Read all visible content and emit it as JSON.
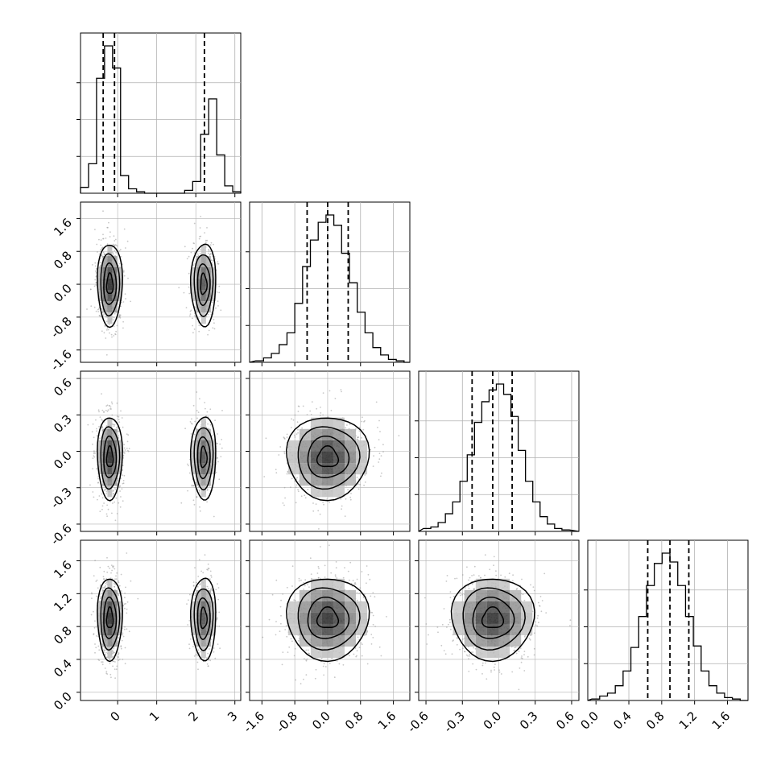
{
  "chart_data": {
    "type": "corner",
    "title": "",
    "n_params": 4,
    "params": [
      {
        "ticks": [
          0,
          1,
          2,
          3
        ],
        "tick_labels": [
          "0",
          "1",
          "2",
          "3"
        ],
        "xlim": [
          -0.95,
          3.15
        ],
        "hist": {
          "edges": [
            -0.95,
            -0.745,
            -0.54,
            -0.335,
            -0.13,
            0.075,
            0.28,
            0.485,
            0.69,
            0.895,
            1.1,
            1.305,
            1.51,
            1.715,
            1.92,
            2.125,
            2.33,
            2.535,
            2.74,
            2.945,
            3.15
          ],
          "counts": [
            0.04,
            0.2,
            0.78,
            1.0,
            0.85,
            0.12,
            0.03,
            0.01,
            0,
            0,
            0,
            0,
            0,
            0.02,
            0.08,
            0.4,
            0.64,
            0.26,
            0.05,
            0.01
          ]
        },
        "quantiles": [
          -0.37,
          -0.08,
          2.22
        ]
      },
      {
        "ticks": [
          -1.6,
          -0.8,
          0.0,
          0.8,
          1.6
        ],
        "tick_labels": [
          "-1.6",
          "-0.8",
          "0.0",
          "0.8",
          "1.6"
        ],
        "xlim": [
          -1.9,
          2.0
        ],
        "hist": {
          "edges": [
            -1.75,
            -1.56,
            -1.37,
            -1.18,
            -0.99,
            -0.8,
            -0.61,
            -0.42,
            -0.23,
            -0.04,
            0.15,
            0.34,
            0.53,
            0.72,
            0.91,
            1.1,
            1.29,
            1.48,
            1.67,
            1.86,
            2.0
          ],
          "counts": [
            0.01,
            0.03,
            0.06,
            0.12,
            0.2,
            0.4,
            0.65,
            0.83,
            0.95,
            1.0,
            0.93,
            0.74,
            0.54,
            0.34,
            0.2,
            0.1,
            0.05,
            0.02,
            0.01,
            0.0
          ]
        },
        "quantiles": [
          -0.5,
          0.0,
          0.5
        ]
      },
      {
        "ticks": [
          -0.6,
          -0.3,
          0.0,
          0.3,
          0.6
        ],
        "tick_labels": [
          "-0.6",
          "-0.3",
          "0.0",
          "0.3",
          "0.6"
        ],
        "xlim": [
          -0.66,
          0.66
        ],
        "hist": {
          "edges": [
            -0.62,
            -0.56,
            -0.5,
            -0.44,
            -0.38,
            -0.32,
            -0.26,
            -0.2,
            -0.14,
            -0.08,
            -0.02,
            0.04,
            0.1,
            0.16,
            0.22,
            0.28,
            0.34,
            0.4,
            0.46,
            0.52,
            0.58
          ],
          "counts": [
            0.02,
            0.03,
            0.06,
            0.12,
            0.2,
            0.34,
            0.52,
            0.74,
            0.88,
            0.96,
            1.0,
            0.93,
            0.78,
            0.55,
            0.34,
            0.2,
            0.1,
            0.05,
            0.02,
            0.01
          ]
        },
        "quantiles": [
          -0.22,
          -0.05,
          0.11
        ]
      },
      {
        "ticks": [
          0.0,
          0.4,
          0.8,
          1.2,
          1.6
        ],
        "tick_labels": [
          "0.0",
          "0.4",
          "0.8",
          "1.2",
          "1.6"
        ],
        "xlim": [
          -0.1,
          1.85
        ],
        "hist": {
          "edges": [
            -0.05,
            0.045,
            0.14,
            0.235,
            0.33,
            0.425,
            0.52,
            0.615,
            0.71,
            0.805,
            0.9,
            0.995,
            1.09,
            1.185,
            1.28,
            1.375,
            1.47,
            1.565,
            1.66,
            1.755,
            1.85
          ],
          "counts": [
            0.01,
            0.03,
            0.05,
            0.1,
            0.2,
            0.36,
            0.57,
            0.78,
            0.93,
            1.0,
            0.94,
            0.78,
            0.57,
            0.37,
            0.2,
            0.1,
            0.05,
            0.02,
            0.01,
            0.0
          ]
        },
        "quantiles": [
          0.63,
          0.9,
          1.13
        ]
      }
    ],
    "pairs": [
      {
        "row": 1,
        "col": 0,
        "clusters": [
          {
            "cx": -0.2,
            "cy": 0.0,
            "sx": 0.16,
            "sy": 0.5,
            "weight": 1.0
          },
          {
            "cx": 2.2,
            "cy": 0.0,
            "sx": 0.16,
            "sy": 0.5,
            "weight": 0.55
          }
        ]
      },
      {
        "row": 2,
        "col": 0,
        "clusters": [
          {
            "cx": -0.2,
            "cy": -0.05,
            "sx": 0.16,
            "sy": 0.17,
            "weight": 1.0
          },
          {
            "cx": 2.2,
            "cy": -0.05,
            "sx": 0.16,
            "sy": 0.17,
            "weight": 0.55
          }
        ]
      },
      {
        "row": 2,
        "col": 1,
        "clusters": [
          {
            "cx": 0.0,
            "cy": -0.05,
            "sx": 0.5,
            "sy": 0.17,
            "weight": 1.0
          }
        ]
      },
      {
        "row": 3,
        "col": 0,
        "clusters": [
          {
            "cx": -0.2,
            "cy": 0.9,
            "sx": 0.16,
            "sy": 0.25,
            "weight": 1.0
          },
          {
            "cx": 2.2,
            "cy": 0.9,
            "sx": 0.16,
            "sy": 0.25,
            "weight": 0.55
          }
        ]
      },
      {
        "row": 3,
        "col": 1,
        "clusters": [
          {
            "cx": 0.0,
            "cy": 0.9,
            "sx": 0.5,
            "sy": 0.25,
            "weight": 1.0
          }
        ]
      },
      {
        "row": 3,
        "col": 2,
        "clusters": [
          {
            "cx": -0.05,
            "cy": 0.9,
            "sx": 0.17,
            "sy": 0.25,
            "weight": 1.0
          }
        ]
      }
    ],
    "contour_levels_sigma": [
      0.5,
      1.0,
      1.5,
      2.0
    ],
    "grid": true,
    "colors": {
      "line": "#000000",
      "points": "#9a9a9a",
      "grid": "#b0b0b0"
    }
  }
}
